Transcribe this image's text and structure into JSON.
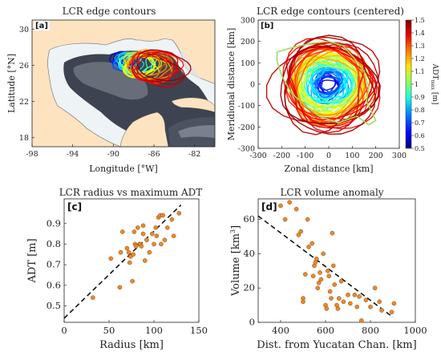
{
  "chart_data": [
    {
      "panel": "[a]",
      "type": "map",
      "title": "LCR edge contours",
      "xlabel": "Longitude [°W]",
      "ylabel": "Latitude [°N]",
      "xticks": [
        "-98",
        "-94",
        "-90",
        "-86",
        "-82"
      ],
      "xlim": [
        -98,
        -80
      ],
      "yticks": [
        "18",
        "22",
        "26",
        "30"
      ],
      "ylim": [
        17,
        31
      ],
      "colors": {
        "land": "#fde3c0",
        "shelf": "#eef3f6",
        "deep": "#3a3f4a"
      }
    },
    {
      "panel": "[b]",
      "type": "line",
      "title": "LCR edge contours (centered)",
      "xlabel": "Zonal distance [km]",
      "ylabel": "Meridional distance [km]",
      "xticks": [
        "-300",
        "-200",
        "-100",
        "0",
        "100",
        "200",
        "300"
      ],
      "xlim": [
        -300,
        300
      ],
      "yticks": [
        "-300",
        "-200",
        "-100",
        "0",
        "100",
        "200",
        "300"
      ],
      "ylim": [
        -300,
        300
      ],
      "colorbar": {
        "label": "ADT",
        "label_sub": "max",
        "label_unit": " [m]",
        "ticks": [
          "0.5",
          "0.6",
          "0.7",
          "0.8",
          "0.9",
          "1",
          "1.1",
          "1.2",
          "1.3",
          "1.4",
          "1.5"
        ],
        "range": [
          0.5,
          1.5
        ]
      }
    },
    {
      "panel": "[c]",
      "type": "scatter",
      "title": "LCR radius vs maximum ADT",
      "xlabel": "Radius [km]",
      "ylabel": "ADT [m]",
      "xticks": [
        "0",
        "50",
        "100",
        "150"
      ],
      "xlim": [
        0,
        150
      ],
      "yticks": [
        "0.5",
        "0.6",
        "0.7",
        "0.8",
        "0.9"
      ],
      "ylim": [
        0.42,
        1.02
      ],
      "trend": {
        "x": [
          0,
          130
        ],
        "y": [
          0.44,
          0.99
        ]
      },
      "points": [
        [
          32,
          0.54
        ],
        [
          62,
          0.59
        ],
        [
          63,
          0.76
        ],
        [
          65,
          0.86
        ],
        [
          52,
          0.73
        ],
        [
          70,
          0.78
        ],
        [
          72,
          0.76
        ],
        [
          73,
          0.71
        ],
        [
          74,
          0.74
        ],
        [
          76,
          0.62
        ],
        [
          77,
          0.75
        ],
        [
          78,
          0.86
        ],
        [
          79,
          0.8
        ],
        [
          80,
          0.79
        ],
        [
          82,
          0.88
        ],
        [
          84,
          0.8
        ],
        [
          85,
          0.8
        ],
        [
          86,
          0.79
        ],
        [
          88,
          0.89
        ],
        [
          90,
          0.72
        ],
        [
          92,
          0.82
        ],
        [
          95,
          0.76
        ],
        [
          98,
          0.85
        ],
        [
          100,
          0.8
        ],
        [
          103,
          0.84
        ],
        [
          105,
          0.93
        ],
        [
          107,
          0.94
        ],
        [
          108,
          0.8
        ],
        [
          110,
          0.94
        ],
        [
          112,
          0.82
        ],
        [
          115,
          0.88
        ],
        [
          120,
          0.92
        ],
        [
          122,
          0.84
        ],
        [
          128,
          0.95
        ],
        [
          102,
          0.88
        ],
        [
          88,
          0.85
        ]
      ]
    },
    {
      "panel": "[d]",
      "type": "scatter",
      "title": "LCR  volume anomaly",
      "xlabel": "Dist. from Yucatan Chan. [km]",
      "ylabel": "Volume [km",
      "ylabel_sup": "3",
      "ylabel_end": "]",
      "xticks": [
        "400",
        "600",
        "800",
        "1000"
      ],
      "xlim": [
        300,
        1000
      ],
      "yticks": [
        "0",
        "20",
        "40",
        "60"
      ],
      "ylim": [
        0,
        72
      ],
      "trend": {
        "x": [
          300,
          900
        ],
        "y": [
          62,
          3
        ]
      },
      "points": [
        [
          400,
          68
        ],
        [
          420,
          60
        ],
        [
          440,
          70
        ],
        [
          470,
          66
        ],
        [
          480,
          51
        ],
        [
          490,
          53
        ],
        [
          500,
          14
        ],
        [
          500,
          12
        ],
        [
          510,
          28
        ],
        [
          520,
          60
        ],
        [
          525,
          44
        ],
        [
          540,
          46
        ],
        [
          545,
          27
        ],
        [
          550,
          33
        ],
        [
          555,
          35
        ],
        [
          560,
          37
        ],
        [
          565,
          20
        ],
        [
          570,
          23
        ],
        [
          575,
          29
        ],
        [
          580,
          25
        ],
        [
          590,
          40
        ],
        [
          600,
          10
        ],
        [
          605,
          8
        ],
        [
          610,
          30
        ],
        [
          615,
          27
        ],
        [
          620,
          18
        ],
        [
          625,
          14
        ],
        [
          630,
          52
        ],
        [
          635,
          33
        ],
        [
          640,
          22
        ],
        [
          650,
          10
        ],
        [
          655,
          8
        ],
        [
          660,
          14
        ],
        [
          670,
          24
        ],
        [
          680,
          12
        ],
        [
          700,
          16
        ],
        [
          710,
          11
        ],
        [
          730,
          16
        ],
        [
          740,
          9
        ],
        [
          750,
          15
        ],
        [
          760,
          1
        ],
        [
          780,
          13
        ],
        [
          800,
          9
        ],
        [
          820,
          20
        ],
        [
          840,
          12
        ],
        [
          850,
          7
        ],
        [
          895,
          6
        ],
        [
          905,
          11
        ]
      ]
    }
  ]
}
